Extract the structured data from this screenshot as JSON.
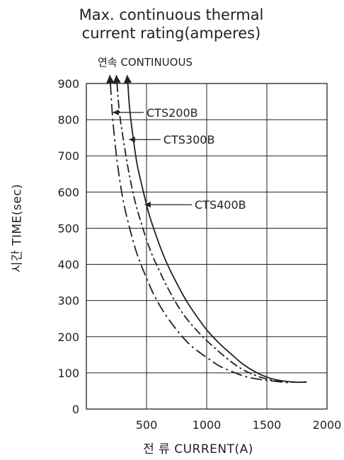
{
  "chart_data": {
    "type": "line",
    "title_line1": "Max. continuous thermal",
    "title_line2": "current rating(amperes)",
    "continuous_label": "연속 CONTINUOUS",
    "xlabel": "전 류 CURRENT(A)",
    "ylabel": "시간 TIME(sec)",
    "xlim": [
      0,
      2000
    ],
    "ylim": [
      0,
      900
    ],
    "x_ticks": [
      500,
      1000,
      1500,
      2000
    ],
    "y_ticks": [
      0,
      100,
      200,
      300,
      400,
      500,
      600,
      700,
      800,
      900
    ],
    "grid": true,
    "series": [
      {
        "name": "CTS200B",
        "style": "dashdot-long",
        "points": [
          [
            200,
            900
          ],
          [
            215,
            820
          ],
          [
            240,
            730
          ],
          [
            270,
            650
          ],
          [
            310,
            570
          ],
          [
            360,
            500
          ],
          [
            420,
            430
          ],
          [
            490,
            370
          ],
          [
            570,
            310
          ],
          [
            660,
            260
          ],
          [
            760,
            215
          ],
          [
            870,
            175
          ],
          [
            990,
            145
          ],
          [
            1100,
            120
          ],
          [
            1200,
            105
          ],
          [
            1320,
            90
          ],
          [
            1440,
            82
          ],
          [
            1560,
            77
          ],
          [
            1700,
            72
          ]
        ],
        "label_at": [
          220,
          820
        ],
        "label_pos": [
          500,
          820
        ]
      },
      {
        "name": "CTS300B",
        "style": "dashdot",
        "points": [
          [
            255,
            900
          ],
          [
            275,
            820
          ],
          [
            310,
            740
          ],
          [
            350,
            660
          ],
          [
            400,
            580
          ],
          [
            460,
            510
          ],
          [
            530,
            440
          ],
          [
            610,
            380
          ],
          [
            700,
            320
          ],
          [
            800,
            265
          ],
          [
            910,
            220
          ],
          [
            1030,
            180
          ],
          [
            1150,
            145
          ],
          [
            1270,
            115
          ],
          [
            1390,
            95
          ],
          [
            1510,
            82
          ],
          [
            1620,
            76
          ],
          [
            1720,
            74
          ]
        ],
        "label_at": [
          355,
          745
        ],
        "label_pos": [
          640,
          745
        ]
      },
      {
        "name": "CTS400B",
        "style": "solid",
        "points": [
          [
            345,
            900
          ],
          [
            360,
            830
          ],
          [
            385,
            760
          ],
          [
            420,
            680
          ],
          [
            460,
            620
          ],
          [
            520,
            540
          ],
          [
            590,
            470
          ],
          [
            660,
            410
          ],
          [
            740,
            355
          ],
          [
            830,
            300
          ],
          [
            920,
            255
          ],
          [
            1010,
            215
          ],
          [
            1110,
            180
          ],
          [
            1210,
            150
          ],
          [
            1310,
            122
          ],
          [
            1420,
            100
          ],
          [
            1530,
            85
          ],
          [
            1650,
            77
          ],
          [
            1760,
            74
          ],
          [
            1830,
            75
          ]
        ],
        "label_at": [
          485,
          565
        ],
        "label_pos": [
          900,
          565
        ]
      }
    ]
  }
}
